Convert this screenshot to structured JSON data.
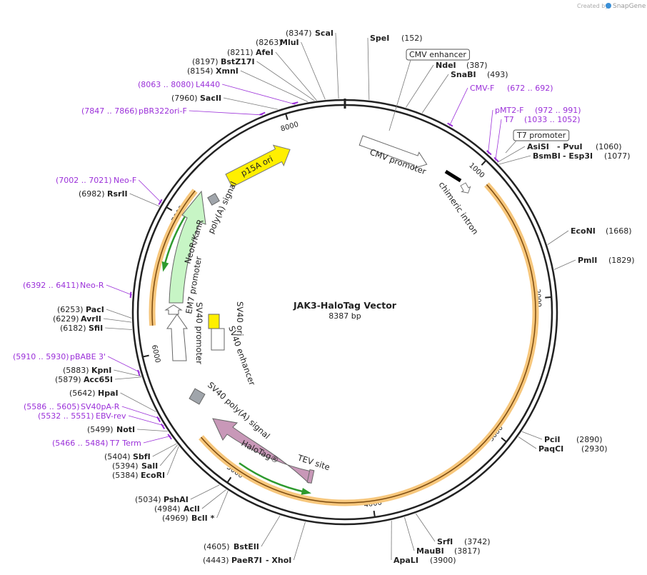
{
  "header": {
    "credit": "Created by",
    "brand": "SnapGene"
  },
  "map": {
    "title": "JAK3-HaloTag Vector",
    "length": 8387,
    "unit": "bp",
    "ticks": [
      1000,
      2000,
      3000,
      4000,
      5000,
      6000,
      7000,
      8000
    ],
    "sites": [
      {
        "name": "ScaI",
        "position": "(8347)"
      },
      {
        "name": "MluI",
        "position": "(8263)"
      },
      {
        "name": "AfeI",
        "position": "(8211)"
      },
      {
        "name": "BstZ17I",
        "position": "(8197)"
      },
      {
        "name": "XmnI",
        "position": "(8154)"
      },
      {
        "name": "SacII",
        "position": "(7960)"
      },
      {
        "name": "SpeI",
        "position": "(152)"
      },
      {
        "name": "NdeI",
        "position": "(387)"
      },
      {
        "name": "SnaBI",
        "position": "(493)"
      },
      {
        "name": "AsiSI",
        "name2": "- PvuI",
        "position": "(1060)"
      },
      {
        "name": "BsmBI",
        "name2": "- Esp3I",
        "position": "(1077)"
      },
      {
        "name": "EcoNI",
        "position": "(1668)"
      },
      {
        "name": "PmlI",
        "position": "(1829)"
      },
      {
        "name": "PciI",
        "position": "(2890)"
      },
      {
        "name": "PaqCI",
        "position": "(2930)"
      },
      {
        "name": "SrfI",
        "position": "(3742)"
      },
      {
        "name": "MauBI",
        "position": "(3817)"
      },
      {
        "name": "ApaLI",
        "position": "(3900)"
      },
      {
        "name": "BstEII",
        "position": "(4605)"
      },
      {
        "name": "PaeR7I",
        "name2": "- XhoI",
        "position": "(4443)"
      },
      {
        "name": "PshAI",
        "position": "(5034)"
      },
      {
        "name": "AclI",
        "position": "(4984)"
      },
      {
        "name": "BclI *",
        "position": "(4969)"
      },
      {
        "name": "SbfI",
        "position": "(5404)"
      },
      {
        "name": "SalI",
        "position": "(5394)"
      },
      {
        "name": "EcoRI",
        "position": "(5384)"
      },
      {
        "name": "NotI",
        "position": "(5499)"
      },
      {
        "name": "HpaI",
        "position": "(5642)"
      },
      {
        "name": "KpnI",
        "position": "(5883)"
      },
      {
        "name": "Acc65I",
        "position": "(5879)"
      },
      {
        "name": "SfiI",
        "position": "(6182)"
      },
      {
        "name": "AvrII",
        "position": "(6229)"
      },
      {
        "name": "PacI",
        "position": "(6253)"
      },
      {
        "name": "RsrII",
        "position": "(6982)"
      }
    ],
    "primers": [
      {
        "name": "L4440",
        "range": "(8063 .. 8080)"
      },
      {
        "name": "pBR322ori-F",
        "range": "(7847 .. 7866)"
      },
      {
        "name": "CMV-F",
        "range": "(672 .. 692)"
      },
      {
        "name": "pMT2-F",
        "range": "(972 .. 991)"
      },
      {
        "name": "T7",
        "range": "(1033 .. 1052)"
      },
      {
        "name": "T7 Term",
        "range": "(5466 .. 5484)"
      },
      {
        "name": "EBV-rev",
        "range": "(5532 .. 5551)"
      },
      {
        "name": "SV40pA-R",
        "range": "(5586 .. 5605)"
      },
      {
        "name": "pBABE 3'",
        "range": "(5910 .. 5930)"
      },
      {
        "name": "Neo-R",
        "range": "(6392 .. 6411)"
      },
      {
        "name": "Neo-F",
        "range": "(7002 .. 7021)"
      }
    ],
    "boxed_features": [
      "CMV enhancer",
      "T7 promoter"
    ],
    "features": {
      "cmv_promoter": "CMV promoter",
      "chimeric_intron": "chimeric intron",
      "p15a_ori": "p15A ori",
      "polya_signal": "poly(A) signal",
      "neor_kanr": "NeoR/KanR",
      "em7_promoter": "EM7 promoter",
      "sv40_promoter": "SV40 promoter",
      "sv40_ori": "SV40 ori",
      "sv40_enhancer": "SV40 enhancer",
      "sv40_polya_signal": "SV40 poly(A) signal",
      "halotag": "HaloTag®",
      "tev_site": "TEV site"
    }
  }
}
